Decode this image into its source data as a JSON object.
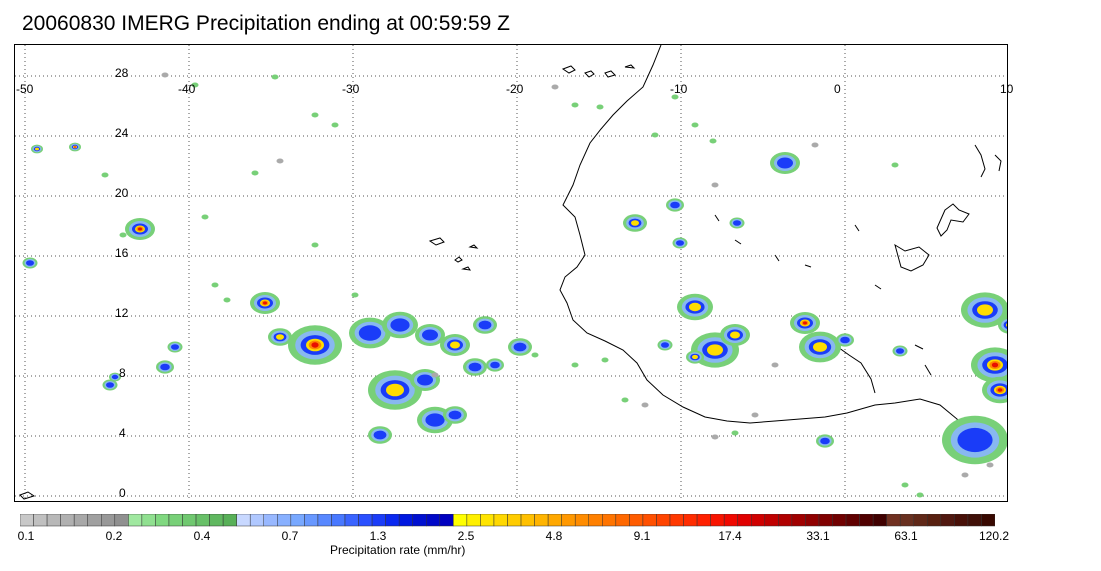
{
  "title": "20060830 IMERG Precipitation ending at 00:59:59 Z",
  "map": {
    "lon_ticks": [
      "-50",
      "-40",
      "-30",
      "-20",
      "-10",
      "0",
      "10"
    ],
    "lat_ticks": [
      "28",
      "24",
      "20",
      "16",
      "12",
      "8",
      "4",
      "0"
    ],
    "gridlines": "dotted",
    "region": {
      "lon_range": [
        -50,
        10
      ],
      "lat_range": [
        -0.5,
        29.5
      ]
    }
  },
  "colorbar": {
    "title": "Precipitation rate (mm/hr)",
    "labels": [
      "0.1",
      "0.2",
      "0.4",
      "0.7",
      "1.3",
      "2.5",
      "4.8",
      "9.1",
      "17.4",
      "33.1",
      "63.1",
      "120.2"
    ],
    "colors": [
      "#c8c8c8",
      "#c0c0c0",
      "#b8b8b8",
      "#b0b0b0",
      "#a8a8a8",
      "#a0a0a0",
      "#989898",
      "#909090",
      "#a0e8a0",
      "#90e090",
      "#80d880",
      "#78d078",
      "#70c870",
      "#68c068",
      "#60b860",
      "#58b058",
      "#c8d8ff",
      "#b0c8ff",
      "#98b8ff",
      "#88b0ff",
      "#78a8ff",
      "#6898ff",
      "#5888ff",
      "#4878ff",
      "#3a64ff",
      "#2a50ff",
      "#1a3cf8",
      "#0a28f0",
      "#0018e0",
      "#0010d0",
      "#0008c8",
      "#0000c0",
      "#ffff00",
      "#fff000",
      "#ffe400",
      "#ffd800",
      "#ffcc00",
      "#ffc000",
      "#ffb400",
      "#ffa800",
      "#ff9800",
      "#ff8c00",
      "#ff8000",
      "#ff7400",
      "#ff6800",
      "#ff5c00",
      "#ff5000",
      "#ff4400",
      "#ff3800",
      "#ff2c00",
      "#ff2000",
      "#f81400",
      "#f00800",
      "#e00000",
      "#d00000",
      "#c00000",
      "#b00000",
      "#a00000",
      "#900000",
      "#800000",
      "#700000",
      "#600000",
      "#500000",
      "#400000",
      "#703020",
      "#683020",
      "#602818",
      "#582010",
      "#501810",
      "#481008",
      "#401008",
      "#380800"
    ]
  },
  "legend_colors": {
    "light": "#aaaaaa",
    "green": "#78d078",
    "lightblue": "#88b8f0",
    "blue": "#1a3cf8",
    "yellow": "#ffdd00",
    "orange": "#ff8800",
    "red": "#e81000"
  }
}
